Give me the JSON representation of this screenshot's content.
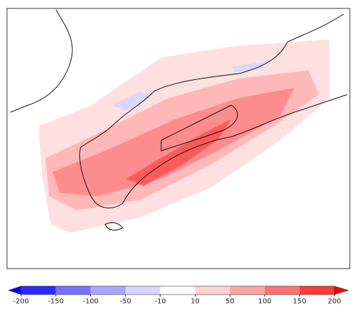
{
  "colorbar": {
    "ticks": [
      -200,
      -150,
      -100,
      -50,
      -10,
      10,
      50,
      100,
      150,
      200
    ],
    "colors": [
      "#2a2aff",
      "#7373ff",
      "#a6a6ff",
      "#d6d6ff",
      "#ffffff",
      "#ffd2d2",
      "#ffa4a4",
      "#ff7272",
      "#ff3a3a"
    ],
    "under": "#0000ff",
    "over": "#ff0000"
  }
}
